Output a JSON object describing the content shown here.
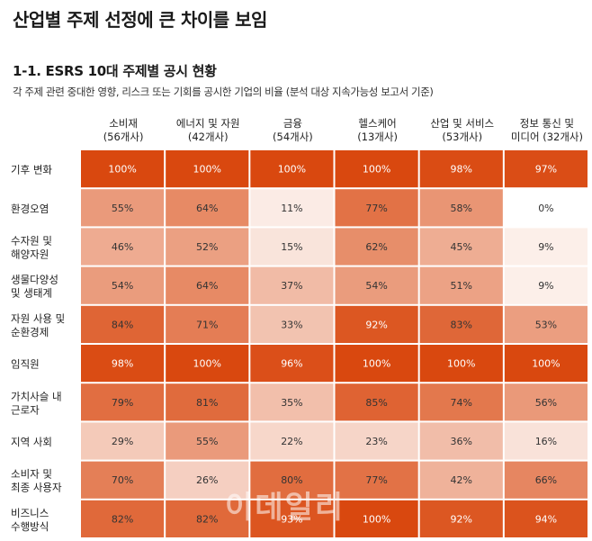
{
  "title": "산업별 주제 선정에 큰 차이를 보임",
  "subtitle": "1-1. ESRS 10대 주제별 공시 현황",
  "description": "각 주제 관련 중대한 영향, 리스크 또는 기회를 공시한 기업의 비율 (분석 대상 지속가능성 보고서 기준)",
  "watermark": "이데일리",
  "colors": {
    "high": "#d9480f",
    "low": "#ffffff",
    "text_dark": "#333333",
    "text_light": "#ffffff"
  },
  "chart_data": {
    "type": "heatmap",
    "columns": [
      [
        "소비재",
        "(56개사)"
      ],
      [
        "에너지 및 자원",
        "(42개사)"
      ],
      [
        "금융",
        "(54개사)"
      ],
      [
        "헬스케어",
        "(13개사)"
      ],
      [
        "산업 및 서비스",
        "(53개사)"
      ],
      [
        "정보 통신 및",
        "미디어 (32개사)"
      ]
    ],
    "rows": [
      [
        "기후 변화"
      ],
      [
        "환경오염"
      ],
      [
        "수자원 및",
        "해양자원"
      ],
      [
        "생물다양성",
        "및 생태계"
      ],
      [
        "자원 사용 및",
        "순환경제"
      ],
      [
        "임직원"
      ],
      [
        "가치사슬 내",
        "근로자"
      ],
      [
        "지역 사회"
      ],
      [
        "소비자 및",
        "최종 사용자"
      ],
      [
        "비즈니스",
        "수행방식"
      ]
    ],
    "values": [
      [
        100,
        100,
        100,
        100,
        98,
        97
      ],
      [
        55,
        64,
        11,
        77,
        58,
        0
      ],
      [
        46,
        52,
        15,
        62,
        45,
        9
      ],
      [
        54,
        64,
        37,
        54,
        51,
        9
      ],
      [
        84,
        71,
        33,
        92,
        83,
        53
      ],
      [
        98,
        100,
        96,
        100,
        100,
        100
      ],
      [
        79,
        81,
        35,
        85,
        74,
        56
      ],
      [
        29,
        55,
        22,
        23,
        36,
        16
      ],
      [
        70,
        26,
        80,
        77,
        42,
        66
      ],
      [
        82,
        82,
        93,
        100,
        92,
        94
      ]
    ],
    "value_suffix": "%",
    "range": [
      0,
      100
    ]
  }
}
